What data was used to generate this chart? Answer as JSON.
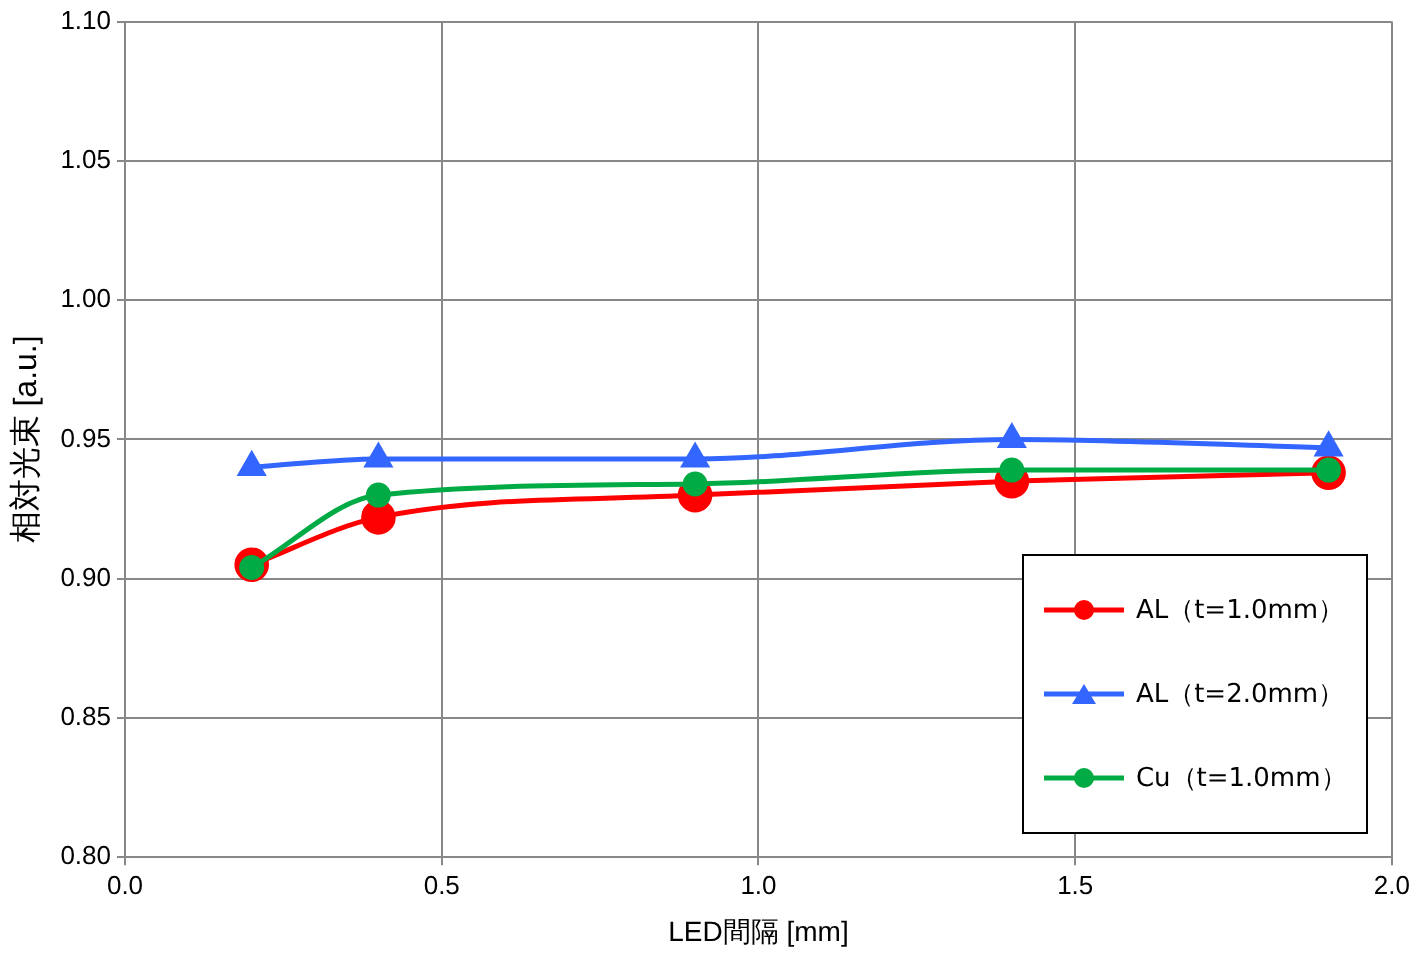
{
  "chart_data": {
    "type": "line",
    "xlabel": "LED間隔 [mm]",
    "ylabel": "相対光束 [a.u.]",
    "x": [
      0.2,
      0.4,
      0.9,
      1.4,
      1.9
    ],
    "series": [
      {
        "name": "AL（t=1.0mm）",
        "color": "#ff0000",
        "marker": "circle",
        "values": [
          0.905,
          0.922,
          0.93,
          0.935,
          0.938
        ]
      },
      {
        "name": "AL（t=2.0mm）",
        "color": "#3366ff",
        "marker": "triangle",
        "values": [
          0.94,
          0.943,
          0.943,
          0.95,
          0.947
        ]
      },
      {
        "name": "Cu（t=1.0mm）",
        "color": "#00aa44",
        "marker": "circle",
        "values": [
          0.904,
          0.93,
          0.934,
          0.939,
          0.939
        ]
      }
    ],
    "xlim": [
      0,
      2
    ],
    "xticks": [
      {
        "value": 0,
        "label": "0.0"
      },
      {
        "value": 0.5,
        "label": "0.5"
      },
      {
        "value": 1,
        "label": "1.0"
      },
      {
        "value": 1.5,
        "label": "1.5"
      },
      {
        "value": 2,
        "label": "2.0"
      }
    ],
    "ylim": [
      0.8,
      1.1
    ],
    "yticks": [
      {
        "value": 0.8,
        "label": "0.80"
      },
      {
        "value": 0.85,
        "label": "0.85"
      },
      {
        "value": 0.9,
        "label": "0.90"
      },
      {
        "value": 0.95,
        "label": "0.95"
      },
      {
        "value": 1,
        "label": "1.00"
      },
      {
        "value": 1.05,
        "label": "1.05"
      },
      {
        "value": 1.1,
        "label": "1.10"
      }
    ],
    "grid": true,
    "legend": "bottom right",
    "line_style": "solid"
  }
}
